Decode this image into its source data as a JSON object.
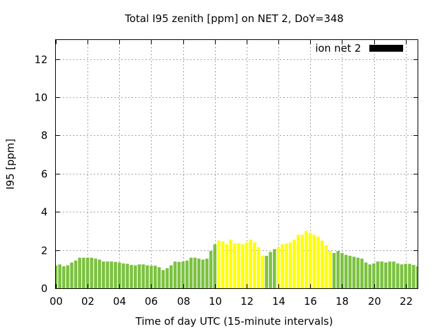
{
  "chart_data": {
    "type": "bar",
    "title": "Total I95 zenith [ppm] on NET 2, DoY=348",
    "xlabel": "Time of day UTC (15-minute intervals)",
    "ylabel": "I95 [ppm]",
    "xlim": [
      0,
      22.75
    ],
    "ylim": [
      0,
      13
    ],
    "grid": true,
    "legend_position": "top-right",
    "x_ticks": [
      "00",
      "02",
      "04",
      "06",
      "08",
      "10",
      "12",
      "14",
      "16",
      "18",
      "20",
      "22"
    ],
    "y_ticks": [
      "0",
      "2",
      "4",
      "6",
      "8",
      "10",
      "12"
    ],
    "colors": {
      "low": "#7cc241",
      "high": "#ffff00",
      "legend": "#000000"
    },
    "series": [
      {
        "name": "ion net 2",
        "color_per_bar": [
          "low",
          "low",
          "low",
          "low",
          "low",
          "low",
          "low",
          "low",
          "low",
          "low",
          "low",
          "low",
          "low",
          "low",
          "low",
          "low",
          "low",
          "low",
          "low",
          "low",
          "low",
          "low",
          "low",
          "low",
          "low",
          "low",
          "low",
          "low",
          "low",
          "low",
          "low",
          "low",
          "low",
          "low",
          "low",
          "low",
          "low",
          "low",
          "low",
          "low",
          "low",
          "high",
          "high",
          "high",
          "high",
          "high",
          "high",
          "high",
          "high",
          "high",
          "high",
          "high",
          "high",
          "low",
          "low",
          "low",
          "high",
          "high",
          "high",
          "high",
          "high",
          "high",
          "high",
          "high",
          "high",
          "high",
          "high",
          "high",
          "high",
          "high",
          "low",
          "low",
          "low",
          "low",
          "low",
          "low",
          "low",
          "low",
          "low",
          "low",
          "low",
          "low",
          "low",
          "low",
          "low",
          "low",
          "low",
          "low",
          "low",
          "low",
          "low",
          "low"
        ],
        "x": [
          0,
          0.25,
          0.5,
          0.75,
          1,
          1.25,
          1.5,
          1.75,
          2,
          2.25,
          2.5,
          2.75,
          3,
          3.25,
          3.5,
          3.75,
          4,
          4.25,
          4.5,
          4.75,
          5,
          5.25,
          5.5,
          5.75,
          6,
          6.25,
          6.5,
          6.75,
          7,
          7.25,
          7.5,
          7.75,
          8,
          8.25,
          8.5,
          8.75,
          9,
          9.25,
          9.5,
          9.75,
          10,
          10.25,
          10.5,
          10.75,
          11,
          11.25,
          11.5,
          11.75,
          12,
          12.25,
          12.5,
          12.75,
          13,
          13.25,
          13.5,
          13.75,
          14,
          14.25,
          14.5,
          14.75,
          15,
          15.25,
          15.5,
          15.75,
          16,
          16.25,
          16.5,
          16.75,
          17,
          17.25,
          17.5,
          17.75,
          18,
          18.25,
          18.5,
          18.75,
          19,
          19.25,
          19.5,
          19.75,
          20,
          20.25,
          20.5,
          20.75,
          21,
          21.25,
          21.5,
          21.75,
          22,
          22.25,
          22.5,
          22.75
        ],
        "values": [
          1.2,
          1.25,
          1.15,
          1.2,
          1.35,
          1.45,
          1.6,
          1.6,
          1.6,
          1.6,
          1.55,
          1.5,
          1.4,
          1.4,
          1.4,
          1.38,
          1.35,
          1.3,
          1.28,
          1.22,
          1.2,
          1.25,
          1.25,
          1.2,
          1.18,
          1.18,
          1.1,
          0.95,
          1.05,
          1.2,
          1.4,
          1.38,
          1.4,
          1.45,
          1.6,
          1.6,
          1.55,
          1.5,
          1.55,
          1.95,
          2.3,
          2.5,
          2.45,
          2.3,
          2.55,
          2.35,
          2.35,
          2.3,
          2.4,
          2.55,
          2.4,
          2.15,
          1.7,
          1.7,
          1.9,
          2.05,
          2.15,
          2.3,
          2.35,
          2.4,
          2.55,
          2.8,
          2.8,
          3.0,
          2.9,
          2.8,
          2.7,
          2.5,
          2.25,
          1.95,
          1.85,
          1.95,
          1.85,
          1.75,
          1.7,
          1.65,
          1.6,
          1.55,
          1.35,
          1.25,
          1.3,
          1.4,
          1.4,
          1.35,
          1.4,
          1.4,
          1.3,
          1.25,
          1.28,
          1.28,
          1.22,
          1.15
        ]
      }
    ]
  }
}
